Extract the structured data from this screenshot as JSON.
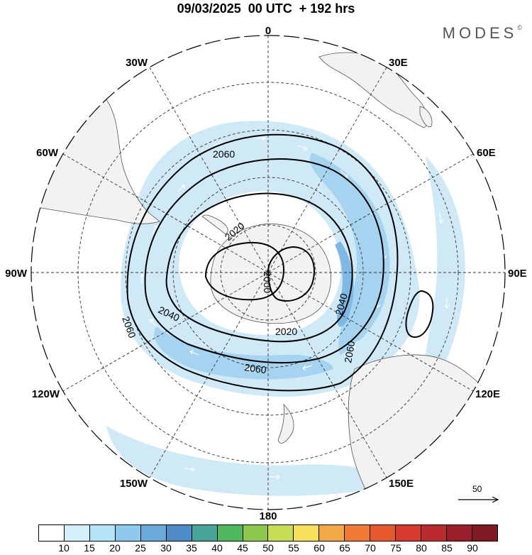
{
  "title": "09/03/2025  00 UTC  + 192 hrs",
  "brand": "MODES",
  "brand_mark": "©",
  "longitude_labels": [
    "0",
    "30E",
    "60E",
    "90E",
    "120E",
    "150E",
    "180",
    "150W",
    "120W",
    "90W",
    "60W",
    "30W"
  ],
  "contour_labels": [
    "2060",
    "2020",
    "2000",
    "2040",
    "2020",
    "2060",
    "2040",
    "2060",
    "2060"
  ],
  "reference_vector": "50",
  "colorbar": {
    "labels": [
      "10",
      "15",
      "20",
      "25",
      "30",
      "35",
      "40",
      "45",
      "50",
      "55",
      "60",
      "65",
      "70",
      "75",
      "80",
      "85",
      "90"
    ],
    "colors": [
      "#ffffff",
      "#d6f0fb",
      "#b3e3f7",
      "#8ec9ee",
      "#6ba8dc",
      "#4e8cc9",
      "#46a39a",
      "#4fb85e",
      "#8cc84b",
      "#c7dc53",
      "#f7de5b",
      "#f4a947",
      "#ef7a35",
      "#e7582d",
      "#d83a2e",
      "#bb2a2e",
      "#9a1e2a",
      "#7e1a22"
    ]
  },
  "colors": {
    "land": "#f2f2f2",
    "wind_light": "#cfe9f7",
    "wind_mid": "#a6d4f0",
    "wind_strong": "#7fb8e4"
  }
}
